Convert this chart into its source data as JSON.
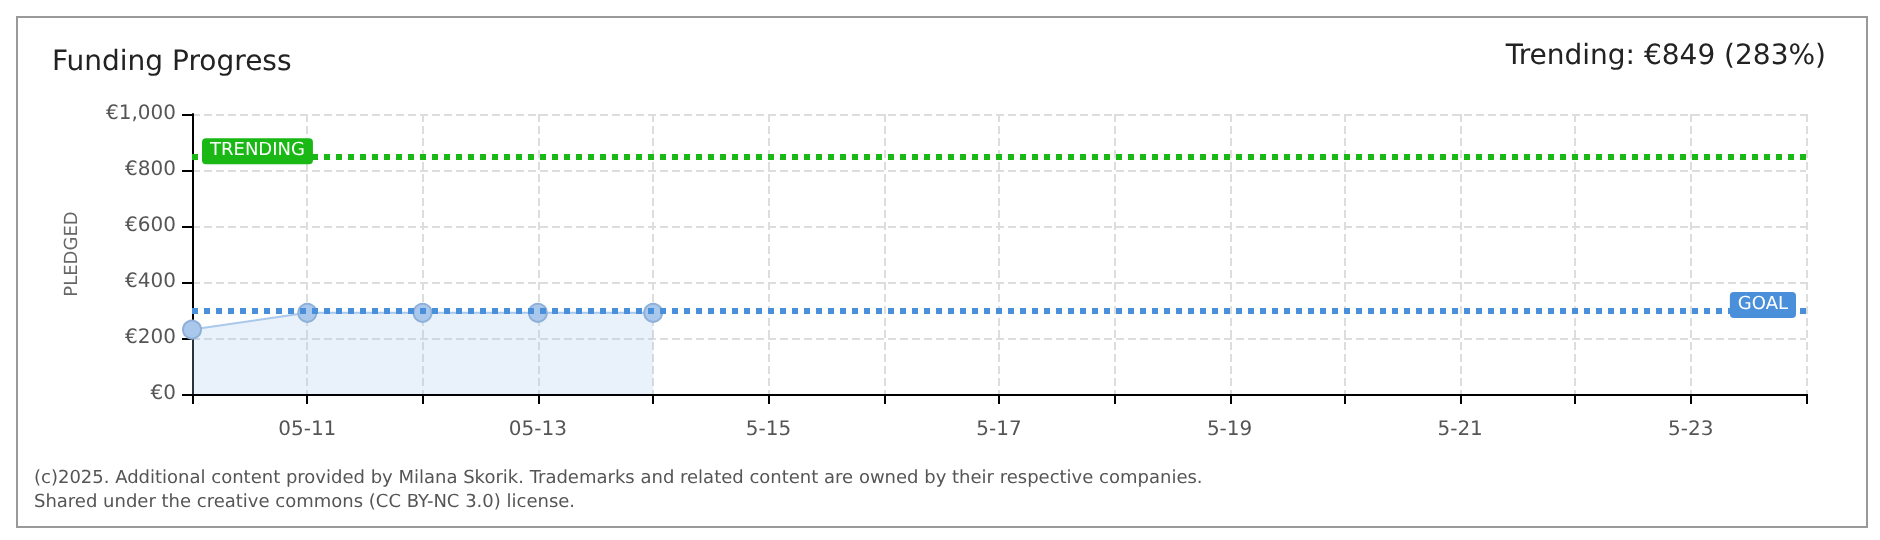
{
  "chart_data": {
    "type": "area",
    "title": "Funding Progress",
    "ylabel": "PLEDGED",
    "annotations": [
      "Trending: €849 (283%)",
      "(c)2025. Additional content provided by Milana Skorik. Trademarks and related content are owned by their respective companies.",
      "Shared under the creative commons (CC BY-NC 3.0) license."
    ],
    "categories": [
      null,
      "05-11",
      null,
      "05-13",
      null,
      "5-15",
      null,
      "5-17",
      null,
      "5-19",
      null,
      "5-21",
      null,
      "5-23",
      null
    ],
    "series": [
      {
        "color": "#a9c8ec",
        "values": [
          230,
          290,
          290,
          290,
          290,
          null,
          null,
          null,
          null,
          null,
          null,
          null,
          null,
          null,
          null
        ]
      }
    ],
    "ylim": [
      0,
      1000
    ],
    "yticks": [
      {
        "value": 0,
        "label": "€0"
      },
      {
        "value": 200,
        "label": "€200"
      },
      {
        "value": 400,
        "label": "€400"
      },
      {
        "value": 600,
        "label": "€600"
      },
      {
        "value": 800,
        "label": "€800"
      },
      {
        "value": 1000,
        "label": "€1,000"
      }
    ],
    "ref_lines": [
      {
        "axis": "y",
        "value": 849,
        "label": "TRENDING",
        "color": "#19b815",
        "line_style": "dotted"
      },
      {
        "axis": "y",
        "value": 300,
        "label": "GOAL",
        "color": "#4a8fd9",
        "line_style": "dotted"
      }
    ],
    "grid": true,
    "marker": "circle"
  }
}
